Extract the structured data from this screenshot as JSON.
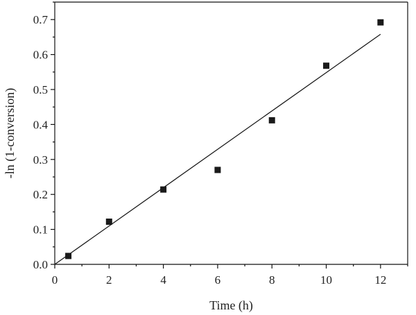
{
  "chart_data": {
    "type": "scatter",
    "xlabel": "Time (h)",
    "ylabel": "-ln (1-conversion)",
    "xlim": [
      0,
      13
    ],
    "ylim": [
      0,
      0.75
    ],
    "grid": false,
    "x_ticks": [
      0,
      2,
      4,
      6,
      8,
      10,
      12
    ],
    "x_tick_labels": [
      "0",
      "2",
      "4",
      "6",
      "8",
      "10",
      "12"
    ],
    "y_ticks": [
      0,
      0.1,
      0.2,
      0.3,
      0.4,
      0.5,
      0.6,
      0.7
    ],
    "y_tick_labels": [
      "0.0",
      "0.1",
      "0.2",
      "0.3",
      "0.4",
      "0.5",
      "0.6",
      "0.7"
    ],
    "series": [
      {
        "type": "scatter",
        "marker": "square",
        "color": "#1a1a1a",
        "x": [
          0.5,
          2,
          4,
          6,
          8,
          10,
          12
        ],
        "y": [
          0.024,
          0.122,
          0.214,
          0.27,
          0.412,
          0.568,
          0.692
        ]
      },
      {
        "type": "line",
        "color": "#1a1a1a",
        "x": [
          0,
          12
        ],
        "y": [
          0.0,
          0.658
        ]
      }
    ]
  }
}
